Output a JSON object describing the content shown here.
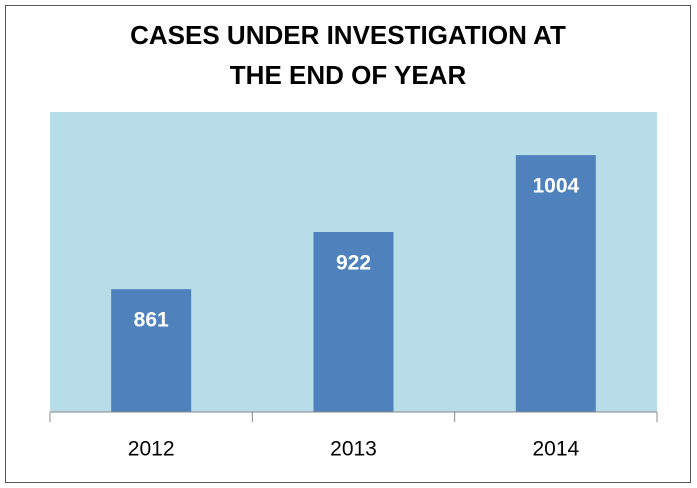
{
  "chart_data": {
    "type": "bar",
    "title": [
      "CASES UNDER INVESTIGATION AT",
      "THE END OF YEAR"
    ],
    "categories": [
      "2012",
      "2013",
      "2014"
    ],
    "values": [
      861,
      922,
      1004
    ],
    "color": "#4f81bd",
    "ylim": [
      730,
      1050
    ]
  }
}
